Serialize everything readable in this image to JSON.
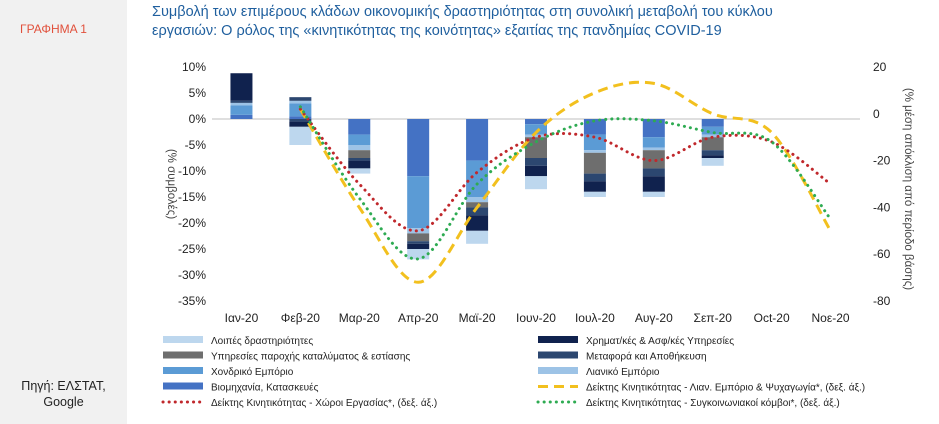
{
  "header": {
    "tag": "ΓΡΑΦΗΜΑ 1",
    "title_line1": "Συμβολή των επιμέρους κλάδων οικονομικής δραστηριότητας στη συνολική μεταβολή του κύκλου",
    "title_line2": "εργασιών: Ο ρόλος της «κινητικότητας της κοινότητας» εξαιτίας της πανδημίας COVID-19",
    "source_line1": "Πηγή: ΕΛΣΤΑΤ,",
    "source_line2": "Google"
  },
  "chart_data": {
    "type": "bar",
    "categories": [
      "Ιαν-20",
      "Φεβ-20",
      "Μαρ-20",
      "Απρ-20",
      "Μαϊ-20",
      "Ιουν-20",
      "Ιουλ-20",
      "Αυγ-20",
      "Σεπ-20",
      "Oct-20",
      "Νοε-20"
    ],
    "ylabel": "(% συμβολές)",
    "y2label": "(% μέση απόκλιση από περίοδο βάσης)",
    "ylim": [
      -35,
      10
    ],
    "yticks": [
      10,
      5,
      0,
      -5,
      -10,
      -15,
      -20,
      -25,
      -30,
      -35
    ],
    "y2lim": [
      -80,
      20
    ],
    "y2ticks": [
      20,
      0,
      -20,
      -40,
      -60,
      -80
    ],
    "bar_series": [
      {
        "name": "Βιομηχανία, Κατασκευές",
        "color": "#4472c4",
        "values": [
          0.8,
          0,
          -3,
          -11,
          -8,
          -1,
          -3,
          -3.5,
          -1.5,
          null,
          null
        ]
      },
      {
        "name": "Χονδρικό Εμπόριο",
        "color": "#5b9bd5",
        "values": [
          1.8,
          0,
          -2,
          -10,
          -7,
          -2,
          -3,
          -2,
          -1.5,
          null,
          null
        ]
      },
      {
        "name": "Λιανικό Εμπόριο",
        "color": "#9dc3e6",
        "values": [
          0.5,
          0,
          -1,
          -1,
          -1,
          -0.5,
          -0.5,
          -0.5,
          -0.5,
          null,
          null
        ]
      },
      {
        "name": "Υπηρεσίες παροχής καταλύματος & εστίασης",
        "color": "#6e6e6e",
        "values": [
          0,
          0,
          -1.5,
          -1.5,
          -1,
          -4,
          -4,
          -3.5,
          -2.5,
          null,
          null
        ]
      },
      {
        "name": "Μεταφορά και Αποθήκευση",
        "color": "#2c4770",
        "values": [
          0.5,
          -0.5,
          -0.5,
          -0.5,
          -1.5,
          -1.5,
          -1.5,
          -1.5,
          -1,
          null,
          null
        ]
      },
      {
        "name": "Χρηματ/κές & Ασφ/κές Υπηρεσίες",
        "color": "#10224e",
        "values": [
          5.5,
          -1,
          -1.5,
          -1,
          -3,
          -2,
          -2,
          -3,
          -0.5,
          null,
          null
        ]
      },
      {
        "name": "Λοιπές δραστηριότητες",
        "color": "#bdd7ee",
        "values": [
          0,
          -3.5,
          -1,
          -2,
          -2.5,
          -2.5,
          -1,
          -1,
          -1.5,
          null,
          null
        ]
      }
    ],
    "pos_stack": [
      {
        "color": "#4472c4",
        "values": [
          0.8,
          0.5,
          0,
          0,
          0,
          0,
          0,
          0,
          0,
          null,
          null
        ]
      },
      {
        "color": "#5b9bd5",
        "values": [
          1.8,
          2.5,
          0,
          0,
          0,
          0,
          0,
          0,
          0,
          null,
          null
        ]
      },
      {
        "color": "#9dc3e6",
        "values": [
          0.5,
          0.5,
          0,
          0,
          0,
          0,
          0,
          0,
          0,
          null,
          null
        ]
      },
      {
        "color": "#2c4770",
        "values": [
          0.4,
          0.7,
          0,
          0,
          0,
          0,
          0,
          0,
          0,
          null,
          null
        ]
      },
      {
        "color": "#10224e",
        "values": [
          5.3,
          0,
          0,
          0,
          0,
          0,
          0,
          0,
          0,
          null,
          null
        ]
      }
    ],
    "line_series": [
      {
        "name": "Δείκτης Κινητικότητας - Λιαν. Εμπόριο & Ψυχαγωγία*, (δεξ. άξ.)",
        "color": "#f2c01e",
        "style": "dashed",
        "values": [
          null,
          2,
          -40,
          -72,
          -40,
          -8,
          9,
          13,
          0,
          -8,
          -50
        ]
      },
      {
        "name": "Δείκτης Κινητικότητας - Χώροι Εργασίας*, (δεξ. άξ.)",
        "color": "#c0282c",
        "style": "dotted",
        "values": [
          null,
          2,
          -30,
          -50,
          -25,
          -10,
          -10,
          -20,
          -10,
          -12,
          -30
        ]
      },
      {
        "name": "Δείκτης Κινητικότητας - Συγκοινωνιακοί κόμβοι*, (δεξ. άξ.)",
        "color": "#2eab52",
        "style": "dotted",
        "values": [
          null,
          3,
          -36,
          -62,
          -30,
          -12,
          -3,
          -3,
          -8,
          -12,
          -45
        ]
      }
    ],
    "legend_order": [
      {
        "name": "Λοιπές δραστηριότητες",
        "kind": "box",
        "color": "#bdd7ee"
      },
      {
        "name": "Χρηματ/κές & Ασφ/κές Υπηρεσίες",
        "kind": "box",
        "color": "#10224e"
      },
      {
        "name": "Υπηρεσίες παροχής καταλύματος & εστίασης",
        "kind": "box",
        "color": "#6e6e6e"
      },
      {
        "name": "Μεταφορά και Αποθήκευση",
        "kind": "box",
        "color": "#2c4770"
      },
      {
        "name": "Χονδρικό Εμπόριο",
        "kind": "box",
        "color": "#5b9bd5"
      },
      {
        "name": "Λιανικό Εμπόριο",
        "kind": "box",
        "color": "#9dc3e6"
      },
      {
        "name": "Βιομηχανία, Κατασκευές",
        "kind": "box",
        "color": "#4472c4"
      },
      {
        "name": "Δείκτης Κινητικότητας - Λιαν. Εμπόριο & Ψυχαγωγία*, (δεξ. άξ.)",
        "kind": "dashed",
        "color": "#f2c01e"
      },
      {
        "name": "Δείκτης Κινητικότητας - Χώροι Εργασίας*, (δεξ. άξ.)",
        "kind": "dotted",
        "color": "#c0282c"
      },
      {
        "name": "Δείκτης Κινητικότητας - Συγκοινωνιακοί κόμβοι*, (δεξ. άξ.)",
        "kind": "dotted",
        "color": "#2eab52"
      }
    ],
    "grid": false,
    "legend_position": "bottom"
  }
}
